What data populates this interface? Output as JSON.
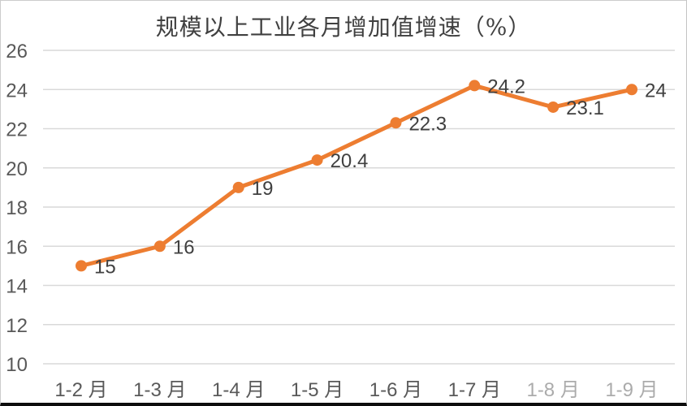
{
  "chart_data": {
    "type": "line",
    "title": "规模以上工业各月增加值增速（%）",
    "categories": [
      "1-2 月",
      "1-3 月",
      "1-4 月",
      "1-5 月",
      "1-6 月",
      "1-7 月",
      "1-8 月",
      "1-9 月"
    ],
    "values": [
      15,
      16,
      19,
      20.4,
      22.3,
      24.2,
      23.1,
      24
    ],
    "data_labels": [
      "15",
      "16",
      "19",
      "20.4",
      "22.3",
      "24.2",
      "23.1",
      "24"
    ],
    "xlabel": "",
    "ylabel": "",
    "ylim": [
      10,
      26
    ],
    "yticks": [
      10,
      12,
      14,
      16,
      18,
      20,
      22,
      24,
      26
    ],
    "grid": true,
    "legend_position": "none",
    "faded_category_indices": [
      6,
      7
    ],
    "colors": {
      "series": "#ED7D31",
      "gridline": "#D9D9D9",
      "tick_text": "#595959",
      "data_label": "#404040",
      "title_text": "#404040"
    }
  }
}
